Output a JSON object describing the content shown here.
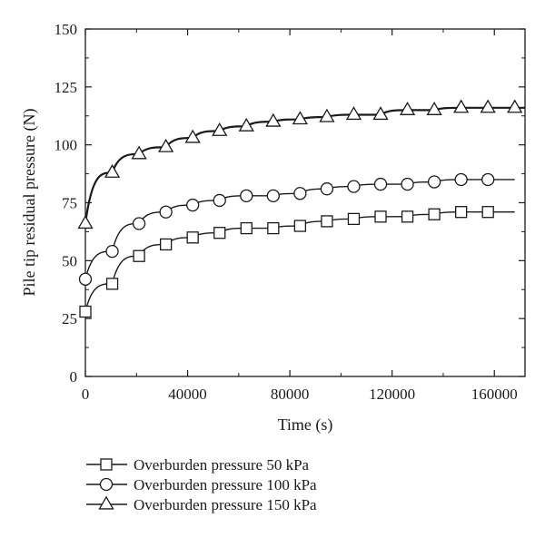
{
  "chart_data": {
    "type": "line",
    "xlabel": "Time (s)",
    "ylabel": "Pile tip residual pressure (N)",
    "xlim": [
      0,
      172000
    ],
    "ylim": [
      0,
      150
    ],
    "xticks": [
      0,
      40000,
      80000,
      120000,
      160000
    ],
    "xtick_labels": [
      "0",
      "40000",
      "80000",
      "120000",
      "160000"
    ],
    "yticks": [
      0,
      25,
      50,
      75,
      100,
      125,
      150
    ],
    "ytick_labels": [
      "0",
      "25",
      "50",
      "75",
      "100",
      "125",
      "150"
    ],
    "grid": false,
    "legend_position": "bottom",
    "series": [
      {
        "name": "Overburden pressure 50 kPa",
        "marker": "square",
        "x": [
          0,
          10500,
          21000,
          31500,
          42000,
          52500,
          63000,
          73500,
          84000,
          94500,
          105000,
          115500,
          126000,
          136500,
          147000,
          157500
        ],
        "values": [
          28,
          40,
          52,
          57,
          60,
          62,
          64,
          64,
          65,
          67,
          68,
          69,
          69,
          70,
          71,
          71
        ],
        "end_x": 168000
      },
      {
        "name": "Overburden pressure 100 kPa",
        "marker": "circle",
        "x": [
          0,
          10500,
          21000,
          31500,
          42000,
          52500,
          63000,
          73500,
          84000,
          94500,
          105000,
          115500,
          126000,
          136500,
          147000,
          157500
        ],
        "values": [
          42,
          54,
          66,
          71,
          74,
          76,
          78,
          78,
          79,
          81,
          82,
          83,
          83,
          84,
          85,
          85
        ],
        "end_x": 168000
      },
      {
        "name": "Overburden pressure 150 kPa",
        "marker": "triangle",
        "x": [
          0,
          10500,
          21000,
          31500,
          42000,
          52500,
          63000,
          73500,
          84000,
          94500,
          105000,
          115500,
          126000,
          136500,
          147000,
          157500,
          168000
        ],
        "values": [
          66,
          88,
          96,
          99,
          103,
          106,
          108,
          110,
          111,
          112,
          113,
          113,
          115,
          115,
          116,
          116,
          116
        ],
        "end_x": 172000
      }
    ]
  }
}
